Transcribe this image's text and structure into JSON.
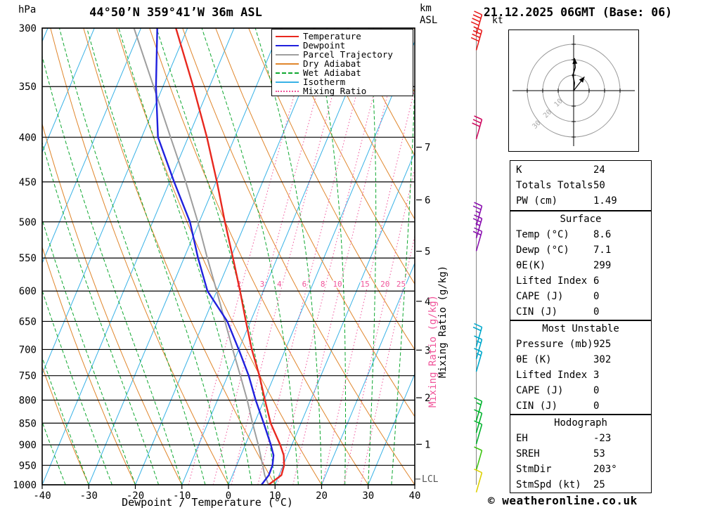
{
  "header": {
    "pressure_unit": "hPa",
    "title": "44°50’N 359°41’W 36m ASL",
    "altitude_unit": "km",
    "altitude_unit2": "ASL",
    "date": "21.12.2025 06GMT (Base: 06)"
  },
  "axis": {
    "bottom_label": "Dewpoint / Temperature (°C)",
    "mixing_label": "Mixing Ratio (g/kg)",
    "lcl": "LCL"
  },
  "legend": {
    "items": [
      {
        "label": "Temperature",
        "color": "#e8281e",
        "dash": "solid"
      },
      {
        "label": "Dewpoint",
        "color": "#2020dd",
        "dash": "solid"
      },
      {
        "label": "Parcel Trajectory",
        "color": "#9e9e9e",
        "dash": "solid"
      },
      {
        "label": "Dry Adiabat",
        "color": "#e0862c",
        "dash": "solid"
      },
      {
        "label": "Wet Adiabat",
        "color": "#0fa830",
        "dash": "dashed"
      },
      {
        "label": "Isotherm",
        "color": "#38b2e6",
        "dash": "solid"
      },
      {
        "label": "Mixing Ratio",
        "color": "#f0549a",
        "dash": "dotted"
      }
    ]
  },
  "chart_data": {
    "type": "skewt-log-p",
    "title": "44°50’N 359°41’W 36m ASL",
    "xlabel": "Dewpoint / Temperature (°C)",
    "x_range_c": [
      -40,
      40
    ],
    "pressure_range_hpa": [
      300,
      1000
    ],
    "pressure_gridlines_hpa": [
      300,
      350,
      400,
      450,
      500,
      550,
      600,
      650,
      700,
      750,
      800,
      850,
      900,
      950,
      1000
    ],
    "temp_ticks_c": [
      -40,
      -30,
      -20,
      -10,
      0,
      10,
      20,
      30,
      40
    ],
    "km_ticks": [
      1,
      2,
      3,
      4,
      5,
      6,
      7
    ],
    "isotherm_step_c": 10,
    "dry_adiabat_step_c": 10,
    "wet_adiabat_step_c": 5,
    "mixing_ratio_gkg": [
      2,
      3,
      4,
      6,
      8,
      10,
      15,
      20,
      25
    ],
    "lcl_hpa": 985,
    "colors": {
      "temperature": "#e8281e",
      "dewpoint": "#2020dd",
      "parcel": "#9e9e9e",
      "dry_adiabat": "#e0862c",
      "wet_adiabat": "#0fa830",
      "isotherm": "#38b2e6",
      "mixing_ratio": "#f0549a"
    },
    "sounding": {
      "pressure_hpa": [
        1000,
        975,
        950,
        925,
        900,
        850,
        800,
        750,
        700,
        650,
        600,
        550,
        500,
        450,
        400,
        350,
        300
      ],
      "temperature_c": [
        8.6,
        10.5,
        10.2,
        9.2,
        7.5,
        3.5,
        0.2,
        -3.2,
        -7.2,
        -11.0,
        -15.0,
        -19.5,
        -24.5,
        -29.8,
        -36.0,
        -43.5,
        -52.5
      ],
      "dewpoint_c": [
        7.1,
        7.8,
        7.7,
        7.0,
        5.5,
        2.0,
        -1.8,
        -5.5,
        -10.0,
        -15.0,
        -22.0,
        -27.0,
        -32.0,
        -39.0,
        -46.5,
        -51.5,
        -56.5
      ],
      "parcel_c": [
        8.6,
        6.9,
        5.6,
        4.2,
        2.8,
        -0.4,
        -3.6,
        -7.3,
        -11.3,
        -15.5,
        -20.0,
        -25.0,
        -30.3,
        -36.5,
        -43.8,
        -52.0,
        -61.5
      ]
    }
  },
  "wind_barbs": [
    {
      "pressure_hpa": 305,
      "speed_kt": 45,
      "color": "#e81c1c"
    },
    {
      "pressure_hpa": 318,
      "speed_kt": 40,
      "color": "#e81c1c"
    },
    {
      "pressure_hpa": 402,
      "speed_kt": 30,
      "color": "#cf0d62"
    },
    {
      "pressure_hpa": 505,
      "speed_kt": 25,
      "color": "#8a11b0"
    },
    {
      "pressure_hpa": 522,
      "speed_kt": 25,
      "color": "#8a11b0"
    },
    {
      "pressure_hpa": 540,
      "speed_kt": 20,
      "color": "#8a11b0"
    },
    {
      "pressure_hpa": 695,
      "speed_kt": 20,
      "color": "#00a8cc"
    },
    {
      "pressure_hpa": 718,
      "speed_kt": 15,
      "color": "#00a8cc"
    },
    {
      "pressure_hpa": 742,
      "speed_kt": 15,
      "color": "#00a8cc"
    },
    {
      "pressure_hpa": 845,
      "speed_kt": 15,
      "color": "#00b22d"
    },
    {
      "pressure_hpa": 872,
      "speed_kt": 10,
      "color": "#00b22d"
    },
    {
      "pressure_hpa": 898,
      "speed_kt": 10,
      "color": "#00b22d"
    },
    {
      "pressure_hpa": 962,
      "speed_kt": 10,
      "color": "#3ec412"
    },
    {
      "pressure_hpa": 1020,
      "speed_kt": 10,
      "color": "#ddd000"
    }
  ],
  "hodograph": {
    "unit": "kt",
    "rings_kt": [
      10,
      20,
      30
    ],
    "trace_kt": [
      [
        0,
        0
      ],
      [
        0.5,
        5
      ],
      [
        -0.5,
        10
      ],
      [
        1,
        15
      ],
      [
        0.5,
        21
      ]
    ],
    "storm_vector_kt": [
      7,
      9
    ]
  },
  "stats": {
    "sections": [
      {
        "header": "",
        "rows": [
          [
            "K",
            "24"
          ],
          [
            "Totals Totals",
            "50"
          ],
          [
            "PW (cm)",
            "1.49"
          ]
        ]
      },
      {
        "header": "Surface",
        "rows": [
          [
            "Temp (°C)",
            "8.6"
          ],
          [
            "Dewp (°C)",
            "7.1"
          ],
          [
            "θE(K)",
            "299"
          ],
          [
            "Lifted Index",
            "6"
          ],
          [
            "CAPE (J)",
            "0"
          ],
          [
            "CIN (J)",
            "0"
          ]
        ]
      },
      {
        "header": "Most Unstable",
        "rows": [
          [
            "Pressure (mb)",
            "925"
          ],
          [
            "θE (K)",
            "302"
          ],
          [
            "Lifted Index",
            "3"
          ],
          [
            "CAPE (J)",
            "0"
          ],
          [
            "CIN (J)",
            "0"
          ]
        ]
      },
      {
        "header": "Hodograph",
        "rows": [
          [
            "EH",
            "-23"
          ],
          [
            "SREH",
            "53"
          ],
          [
            "StmDir",
            "203°"
          ],
          [
            "StmSpd (kt)",
            "25"
          ]
        ]
      }
    ]
  },
  "footer": {
    "copyright": "© weatheronline.co.uk"
  }
}
